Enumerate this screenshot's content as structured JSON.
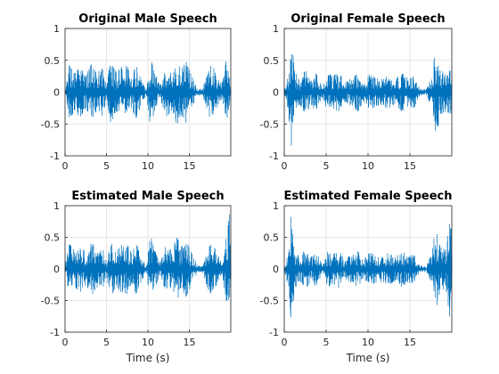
{
  "colors": {
    "signal": "#0072BD",
    "grid": "#e6e6e6",
    "axis": "#262626",
    "background": "#ffffff"
  },
  "chart_data": [
    {
      "type": "line",
      "title": "Original Male Speech",
      "xlabel": "",
      "ylabel": "",
      "xlim": [
        0,
        20
      ],
      "ylim": [
        -1,
        1
      ],
      "xticks": [
        0,
        5,
        10,
        15
      ],
      "yticks": [
        -1,
        -0.5,
        0,
        0.5,
        1
      ],
      "ytick_labels": [
        "-1",
        "-0.5",
        "0",
        "0.5",
        "1"
      ],
      "grid": true,
      "series": [
        {
          "envelope": [
            {
              "x": 0,
              "y": 0.05
            },
            {
              "x": 0.5,
              "y": 0.42
            },
            {
              "x": 1.2,
              "y": 0.3
            },
            {
              "x": 1.8,
              "y": 0.4
            },
            {
              "x": 2.5,
              "y": 0.25
            },
            {
              "x": 3.2,
              "y": 0.45
            },
            {
              "x": 3.8,
              "y": 0.3
            },
            {
              "x": 4.5,
              "y": 0.38
            },
            {
              "x": 5.0,
              "y": 0.12
            },
            {
              "x": 5.5,
              "y": 0.48
            },
            {
              "x": 6.2,
              "y": 0.3
            },
            {
              "x": 6.8,
              "y": 0.4
            },
            {
              "x": 7.5,
              "y": 0.42
            },
            {
              "x": 8.0,
              "y": 0.25
            },
            {
              "x": 8.6,
              "y": 0.42
            },
            {
              "x": 9.2,
              "y": 0.2
            },
            {
              "x": 9.8,
              "y": 0.03
            },
            {
              "x": 10.3,
              "y": 0.55
            },
            {
              "x": 10.8,
              "y": 0.3
            },
            {
              "x": 11.5,
              "y": 0.1
            },
            {
              "x": 12.2,
              "y": 0.4
            },
            {
              "x": 12.8,
              "y": 0.3
            },
            {
              "x": 13.5,
              "y": 0.52
            },
            {
              "x": 14.0,
              "y": 0.35
            },
            {
              "x": 14.6,
              "y": 0.48
            },
            {
              "x": 15.3,
              "y": 0.25
            },
            {
              "x": 16.0,
              "y": 0.05
            },
            {
              "x": 16.6,
              "y": 0.05
            },
            {
              "x": 17.2,
              "y": 0.35
            },
            {
              "x": 17.8,
              "y": 0.45
            },
            {
              "x": 18.3,
              "y": 0.25
            },
            {
              "x": 18.9,
              "y": 0.12
            },
            {
              "x": 19.4,
              "y": 0.5
            },
            {
              "x": 20,
              "y": 0.15
            }
          ]
        }
      ]
    },
    {
      "type": "line",
      "title": "Original Female Speech",
      "xlabel": "",
      "ylabel": "",
      "xlim": [
        0,
        20
      ],
      "ylim": [
        -1,
        1
      ],
      "xticks": [
        0,
        5,
        10,
        15
      ],
      "yticks": [
        -1,
        -0.5,
        0,
        0.5,
        1
      ],
      "ytick_labels": [
        "-1",
        "-0.5",
        "0",
        "0.5",
        "1"
      ],
      "grid": true,
      "series": [
        {
          "envelope": [
            {
              "x": 0,
              "y": 0.03
            },
            {
              "x": 0.5,
              "y": 0.3
            },
            {
              "x": 0.85,
              "y": 0.95
            },
            {
              "x": 1.2,
              "y": 0.35
            },
            {
              "x": 1.8,
              "y": 0.18
            },
            {
              "x": 2.5,
              "y": 0.35
            },
            {
              "x": 3.2,
              "y": 0.2
            },
            {
              "x": 3.8,
              "y": 0.3
            },
            {
              "x": 4.5,
              "y": 0.08
            },
            {
              "x": 5.2,
              "y": 0.3
            },
            {
              "x": 5.8,
              "y": 0.25
            },
            {
              "x": 6.5,
              "y": 0.32
            },
            {
              "x": 7.2,
              "y": 0.15
            },
            {
              "x": 8.0,
              "y": 0.22
            },
            {
              "x": 8.8,
              "y": 0.3
            },
            {
              "x": 9.5,
              "y": 0.15
            },
            {
              "x": 10.2,
              "y": 0.28
            },
            {
              "x": 11.0,
              "y": 0.22
            },
            {
              "x": 11.8,
              "y": 0.2
            },
            {
              "x": 12.5,
              "y": 0.28
            },
            {
              "x": 13.2,
              "y": 0.18
            },
            {
              "x": 14.0,
              "y": 0.3
            },
            {
              "x": 14.8,
              "y": 0.22
            },
            {
              "x": 15.5,
              "y": 0.25
            },
            {
              "x": 16.2,
              "y": 0.05
            },
            {
              "x": 17.0,
              "y": 0.05
            },
            {
              "x": 17.6,
              "y": 0.25
            },
            {
              "x": 18.1,
              "y": 0.75
            },
            {
              "x": 18.6,
              "y": 0.35
            },
            {
              "x": 19.3,
              "y": 0.3
            },
            {
              "x": 20,
              "y": 0.35
            }
          ]
        }
      ]
    },
    {
      "type": "line",
      "title": "Estimated Male Speech",
      "xlabel": "Time (s)",
      "ylabel": "",
      "xlim": [
        0,
        20
      ],
      "ylim": [
        -1,
        1
      ],
      "xticks": [
        0,
        5,
        10,
        15
      ],
      "yticks": [
        -1,
        -0.5,
        0,
        0.5,
        1
      ],
      "ytick_labels": [
        "-1",
        "-0.5",
        "0",
        "0.5",
        "1"
      ],
      "grid": true,
      "series": [
        {
          "envelope": [
            {
              "x": 0,
              "y": 0.05
            },
            {
              "x": 0.5,
              "y": 0.4
            },
            {
              "x": 1.2,
              "y": 0.28
            },
            {
              "x": 1.8,
              "y": 0.38
            },
            {
              "x": 2.5,
              "y": 0.25
            },
            {
              "x": 3.2,
              "y": 0.42
            },
            {
              "x": 3.8,
              "y": 0.3
            },
            {
              "x": 4.5,
              "y": 0.35
            },
            {
              "x": 5.0,
              "y": 0.12
            },
            {
              "x": 5.5,
              "y": 0.45
            },
            {
              "x": 6.2,
              "y": 0.28
            },
            {
              "x": 6.8,
              "y": 0.38
            },
            {
              "x": 7.5,
              "y": 0.4
            },
            {
              "x": 8.0,
              "y": 0.25
            },
            {
              "x": 8.6,
              "y": 0.4
            },
            {
              "x": 9.2,
              "y": 0.2
            },
            {
              "x": 9.8,
              "y": 0.03
            },
            {
              "x": 10.3,
              "y": 0.55
            },
            {
              "x": 10.8,
              "y": 0.3
            },
            {
              "x": 11.5,
              "y": 0.1
            },
            {
              "x": 12.2,
              "y": 0.38
            },
            {
              "x": 12.8,
              "y": 0.3
            },
            {
              "x": 13.5,
              "y": 0.5
            },
            {
              "x": 14.0,
              "y": 0.35
            },
            {
              "x": 14.6,
              "y": 0.45
            },
            {
              "x": 15.3,
              "y": 0.25
            },
            {
              "x": 16.0,
              "y": 0.05
            },
            {
              "x": 16.6,
              "y": 0.05
            },
            {
              "x": 17.2,
              "y": 0.32
            },
            {
              "x": 17.8,
              "y": 0.42
            },
            {
              "x": 18.3,
              "y": 0.25
            },
            {
              "x": 18.9,
              "y": 0.12
            },
            {
              "x": 19.4,
              "y": 0.45
            },
            {
              "x": 19.9,
              "y": 0.95
            },
            {
              "x": 20,
              "y": 0.3
            }
          ]
        }
      ]
    },
    {
      "type": "line",
      "title": "Estimated Female Speech",
      "xlabel": "Time (s)",
      "ylabel": "",
      "xlim": [
        0,
        20
      ],
      "ylim": [
        -1,
        1
      ],
      "xticks": [
        0,
        5,
        10,
        15
      ],
      "yticks": [
        -1,
        -0.5,
        0,
        0.5,
        1
      ],
      "ytick_labels": [
        "-1",
        "-0.5",
        "0",
        "0.5",
        "1"
      ],
      "grid": true,
      "series": [
        {
          "envelope": [
            {
              "x": 0,
              "y": 0.03
            },
            {
              "x": 0.5,
              "y": 0.3
            },
            {
              "x": 0.85,
              "y": 0.88
            },
            {
              "x": 1.2,
              "y": 0.35
            },
            {
              "x": 1.8,
              "y": 0.18
            },
            {
              "x": 2.5,
              "y": 0.32
            },
            {
              "x": 3.2,
              "y": 0.2
            },
            {
              "x": 3.8,
              "y": 0.28
            },
            {
              "x": 4.5,
              "y": 0.08
            },
            {
              "x": 5.2,
              "y": 0.28
            },
            {
              "x": 5.8,
              "y": 0.25
            },
            {
              "x": 6.5,
              "y": 0.3
            },
            {
              "x": 7.2,
              "y": 0.15
            },
            {
              "x": 8.0,
              "y": 0.22
            },
            {
              "x": 8.8,
              "y": 0.28
            },
            {
              "x": 9.5,
              "y": 0.15
            },
            {
              "x": 10.2,
              "y": 0.26
            },
            {
              "x": 11.0,
              "y": 0.22
            },
            {
              "x": 11.8,
              "y": 0.2
            },
            {
              "x": 12.5,
              "y": 0.26
            },
            {
              "x": 13.2,
              "y": 0.18
            },
            {
              "x": 14.0,
              "y": 0.28
            },
            {
              "x": 14.8,
              "y": 0.22
            },
            {
              "x": 15.5,
              "y": 0.22
            },
            {
              "x": 16.2,
              "y": 0.05
            },
            {
              "x": 17.0,
              "y": 0.05
            },
            {
              "x": 17.6,
              "y": 0.25
            },
            {
              "x": 18.1,
              "y": 0.68
            },
            {
              "x": 18.6,
              "y": 0.35
            },
            {
              "x": 19.3,
              "y": 0.3
            },
            {
              "x": 19.9,
              "y": 0.95
            },
            {
              "x": 20,
              "y": 0.3
            }
          ]
        }
      ]
    }
  ]
}
